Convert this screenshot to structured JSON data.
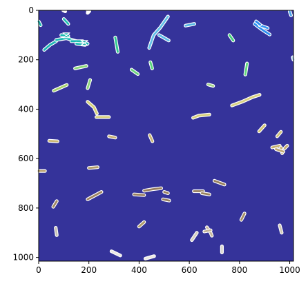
{
  "chart_data": {
    "type": "heatmap",
    "title": "",
    "xlabel": "",
    "ylabel": "",
    "xlim": [
      0,
      1015
    ],
    "ylim": [
      1015,
      0
    ],
    "x_ticks": [
      0,
      200,
      400,
      600,
      800,
      1000
    ],
    "y_ticks": [
      0,
      200,
      400,
      600,
      800,
      1000
    ],
    "x_tick_labels": [
      "0",
      "200",
      "400",
      "600",
      "800",
      "1000"
    ],
    "y_tick_labels": [
      "0",
      "200",
      "400",
      "600",
      "800",
      "1000"
    ],
    "grid": false,
    "background_color": "#35339a",
    "outline_color": "#ffffff",
    "segments": [
      {
        "points": [
          [
            98,
            0
          ],
          [
            106,
            4
          ]
        ],
        "color": "#ffffff"
      },
      {
        "points": [
          [
            195,
            0
          ],
          [
            200,
            3
          ]
        ],
        "color": "#ffffff"
      },
      {
        "points": [
          [
            195,
            10
          ],
          [
            202,
            3
          ]
        ],
        "color": "#ffffff"
      },
      {
        "points": [
          [
            0,
            45
          ],
          [
            8,
            60
          ]
        ],
        "color": "#1ab8b1"
      },
      {
        "points": [
          [
            100,
            35
          ],
          [
            118,
            55
          ]
        ],
        "color": "#23c1b3"
      },
      {
        "points": [
          [
            22,
            160
          ],
          [
            45,
            140
          ],
          [
            70,
            125
          ]
        ],
        "color": "#1fb7b5"
      },
      {
        "points": [
          [
            90,
            100
          ],
          [
            118,
            104
          ]
        ],
        "color": "#17b9b0"
      },
      {
        "points": [
          [
            70,
            120
          ],
          [
            110,
            113
          ],
          [
            150,
            125
          ],
          [
            175,
            130
          ],
          [
            195,
            135
          ]
        ],
        "color": "#18b7b3"
      },
      {
        "points": [
          [
            130,
            125
          ],
          [
            176,
            125
          ]
        ],
        "color": "#17b5b1"
      },
      {
        "points": [
          [
            150,
            135
          ],
          [
            185,
            140
          ]
        ],
        "color": "#21b8b5"
      },
      {
        "points": [
          [
            305,
            110
          ],
          [
            315,
            168
          ]
        ],
        "color": "#2fc98f"
      },
      {
        "points": [
          [
            440,
            152
          ],
          [
            458,
            100
          ],
          [
            484,
            70
          ],
          [
            515,
            25
          ]
        ],
        "color": "#62c0e8"
      },
      {
        "points": [
          [
            480,
            100
          ],
          [
            518,
            122
          ]
        ],
        "color": "#5fbde8"
      },
      {
        "points": [
          [
            585,
            62
          ],
          [
            620,
            55
          ]
        ],
        "color": "#57b8e4"
      },
      {
        "points": [
          [
            760,
            100
          ],
          [
            775,
            122
          ]
        ],
        "color": "#43cd7a"
      },
      {
        "points": [
          [
            860,
            55
          ],
          [
            890,
            78
          ],
          [
            920,
            98
          ]
        ],
        "color": "#2d8ff0"
      },
      {
        "points": [
          [
            880,
            60
          ],
          [
            912,
            72
          ]
        ],
        "color": "#3998f2"
      },
      {
        "points": [
          [
            866,
            45
          ],
          [
            882,
            58
          ]
        ],
        "color": "#2c8cef"
      },
      {
        "points": [
          [
            1000,
            5
          ],
          [
            1005,
            20
          ]
        ],
        "color": "#4ea6ea"
      },
      {
        "points": [
          [
            1012,
            190
          ],
          [
            1015,
            200
          ]
        ],
        "color": "#b2d6ed"
      },
      {
        "points": [
          [
            145,
            235
          ],
          [
            190,
            225
          ]
        ],
        "color": "#8dd87d"
      },
      {
        "points": [
          [
            370,
            240
          ],
          [
            395,
            258
          ]
        ],
        "color": "#6ad67c"
      },
      {
        "points": [
          [
            445,
            210
          ],
          [
            452,
            235
          ]
        ],
        "color": "#58d57c"
      },
      {
        "points": [
          [
            830,
            215
          ],
          [
            823,
            260
          ]
        ],
        "color": "#62da7d"
      },
      {
        "points": [
          [
            60,
            325
          ],
          [
            112,
            302
          ]
        ],
        "color": "#a8d46e"
      },
      {
        "points": [
          [
            205,
            282
          ],
          [
            195,
            315
          ]
        ],
        "color": "#8dd47a"
      },
      {
        "points": [
          [
            675,
            300
          ],
          [
            695,
            306
          ]
        ],
        "color": "#a6d68c"
      },
      {
        "points": [
          [
            195,
            370
          ],
          [
            220,
            392
          ],
          [
            232,
            418
          ]
        ],
        "color": "#d6d27c"
      },
      {
        "points": [
          [
            230,
            432
          ],
          [
            280,
            432
          ]
        ],
        "color": "#d7cf7f"
      },
      {
        "points": [
          [
            770,
            385
          ],
          [
            810,
            370
          ],
          [
            850,
            352
          ],
          [
            880,
            342
          ]
        ],
        "color": "#dad282"
      },
      {
        "points": [
          [
            615,
            435
          ],
          [
            638,
            426
          ],
          [
            680,
            422
          ]
        ],
        "color": "#d8d07e"
      },
      {
        "points": [
          [
            878,
            490
          ],
          [
            900,
            465
          ]
        ],
        "color": "#d3c573"
      },
      {
        "points": [
          [
            950,
            510
          ],
          [
            965,
            492
          ]
        ],
        "color": "#cfc27b"
      },
      {
        "points": [
          [
            42,
            528
          ],
          [
            75,
            530
          ]
        ],
        "color": "#ccb774"
      },
      {
        "points": [
          [
            280,
            510
          ],
          [
            305,
            515
          ]
        ],
        "color": "#c7b177"
      },
      {
        "points": [
          [
            442,
            505
          ],
          [
            453,
            530
          ]
        ],
        "color": "#c7b474"
      },
      {
        "points": [
          [
            930,
            555
          ],
          [
            960,
            548
          ]
        ],
        "color": "#c6b171"
      },
      {
        "points": [
          [
            965,
            555
          ],
          [
            970,
            578
          ]
        ],
        "color": "#c4ac71"
      },
      {
        "points": [
          [
            945,
            562
          ],
          [
            975,
            572
          ]
        ],
        "color": "#c0a874"
      },
      {
        "points": [
          [
            980,
            558
          ],
          [
            990,
            548
          ]
        ],
        "color": "#c4ac72"
      },
      {
        "points": [
          [
            0,
            650
          ],
          [
            25,
            650
          ]
        ],
        "color": "#bda472"
      },
      {
        "points": [
          [
            200,
            638
          ],
          [
            235,
            635
          ]
        ],
        "color": "#b49d6e"
      },
      {
        "points": [
          [
            195,
            765
          ],
          [
            250,
            735
          ]
        ],
        "color": "#9e8462"
      },
      {
        "points": [
          [
            380,
            745
          ],
          [
            420,
            748
          ]
        ],
        "color": "#9a8062"
      },
      {
        "points": [
          [
            420,
            730
          ],
          [
            455,
            724
          ],
          [
            488,
            720
          ]
        ],
        "color": "#9a8060"
      },
      {
        "points": [
          [
            500,
            735
          ],
          [
            515,
            740
          ]
        ],
        "color": "#99805f"
      },
      {
        "points": [
          [
            495,
            765
          ],
          [
            520,
            770
          ]
        ],
        "color": "#977f5f"
      },
      {
        "points": [
          [
            618,
            732
          ],
          [
            655,
            732
          ]
        ],
        "color": "#988060"
      },
      {
        "points": [
          [
            650,
            740
          ],
          [
            680,
            745
          ]
        ],
        "color": "#9a825f"
      },
      {
        "points": [
          [
            700,
            690
          ],
          [
            740,
            705
          ]
        ],
        "color": "#98815f"
      },
      {
        "points": [
          [
            58,
            795
          ],
          [
            72,
            772
          ]
        ],
        "color": "#a08863"
      },
      {
        "points": [
          [
            820,
            822
          ],
          [
            807,
            848
          ]
        ],
        "color": "#a58e65"
      },
      {
        "points": [
          [
            400,
            875
          ],
          [
            420,
            857
          ]
        ],
        "color": "#af9b68"
      },
      {
        "points": [
          [
            68,
            880
          ],
          [
            72,
            910
          ]
        ],
        "color": "#c8c3b5"
      },
      {
        "points": [
          [
            610,
            930
          ],
          [
            630,
            900
          ]
        ],
        "color": "#d6d0c0"
      },
      {
        "points": [
          [
            670,
            878
          ],
          [
            685,
            900
          ],
          [
            690,
            912
          ]
        ],
        "color": "#c7b99d"
      },
      {
        "points": [
          [
            660,
            895
          ],
          [
            685,
            890
          ]
        ],
        "color": "#c3b49a"
      },
      {
        "points": [
          [
            960,
            870
          ],
          [
            968,
            900
          ]
        ],
        "color": "#d0c8b6"
      },
      {
        "points": [
          [
            730,
            955
          ],
          [
            730,
            980
          ]
        ],
        "color": "#dcd8d0"
      },
      {
        "points": [
          [
            290,
            975
          ],
          [
            325,
            992
          ]
        ],
        "color": "#ece9e4"
      },
      {
        "points": [
          [
            425,
            1005
          ],
          [
            460,
            995
          ]
        ],
        "color": "#ebe8e2"
      }
    ],
    "markers": [
      {
        "shape": "hourglass",
        "x": 110,
        "y": 101,
        "color": "#1ab3ac"
      },
      {
        "shape": "hourglass",
        "x": 182,
        "y": 132,
        "color": "#15aaa6"
      }
    ]
  }
}
